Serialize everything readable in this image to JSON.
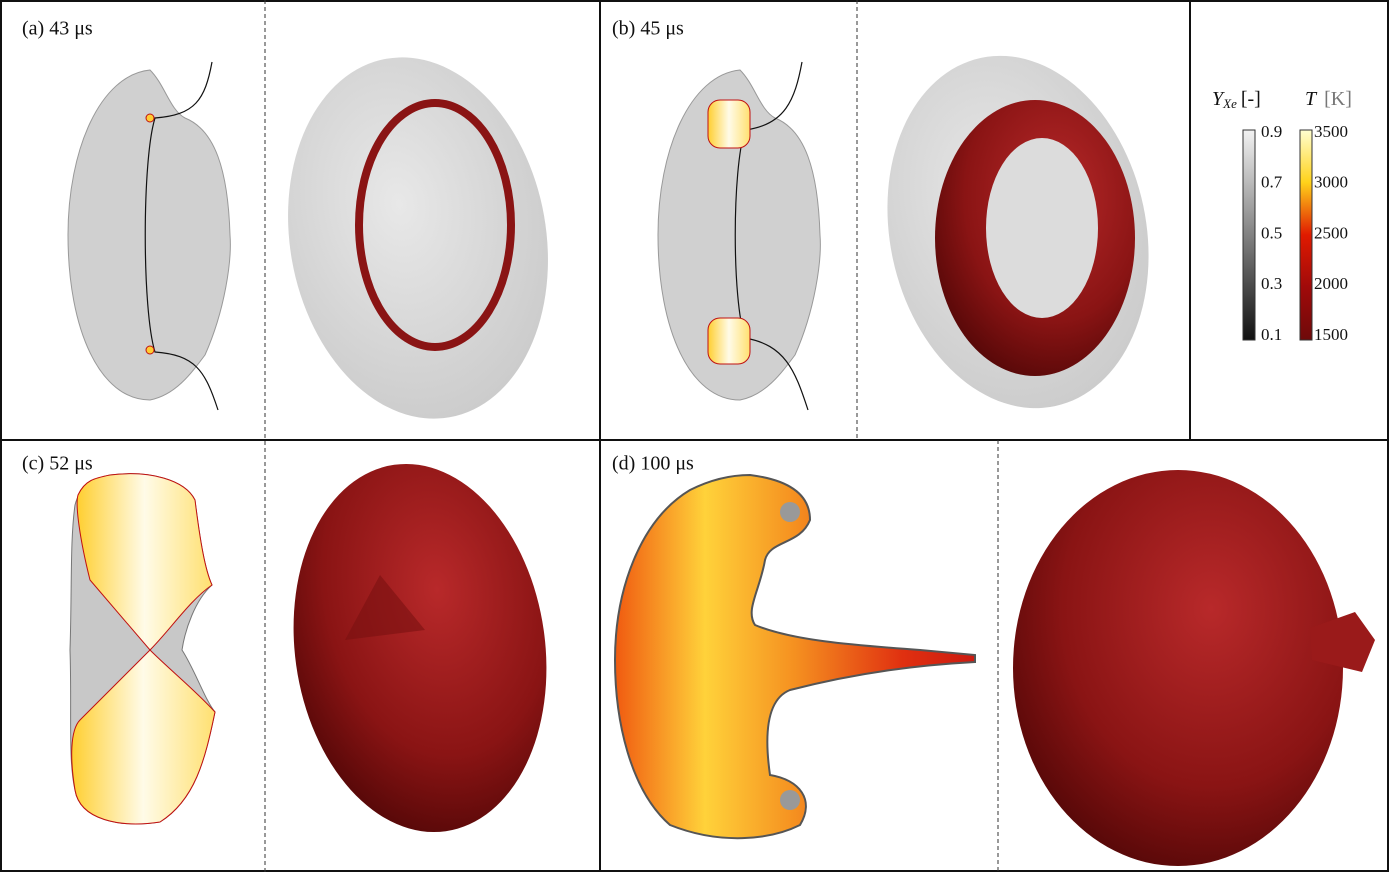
{
  "panels": [
    {
      "label": "(a) 43 μs"
    },
    {
      "label": "(b) 45 μs"
    },
    {
      "label": "(c) 52 μs"
    },
    {
      "label": "(d) 100 μs"
    }
  ],
  "colorbars": [
    {
      "symbol": "Y",
      "subscript": "Xe",
      "unit": "[-]",
      "ticks": [
        0.9,
        0.7,
        0.5,
        0.3,
        0.1
      ]
    },
    {
      "symbol": "T",
      "unit": "[K]",
      "ticks": [
        3500,
        3000,
        2500,
        2000,
        1500
      ]
    }
  ]
}
